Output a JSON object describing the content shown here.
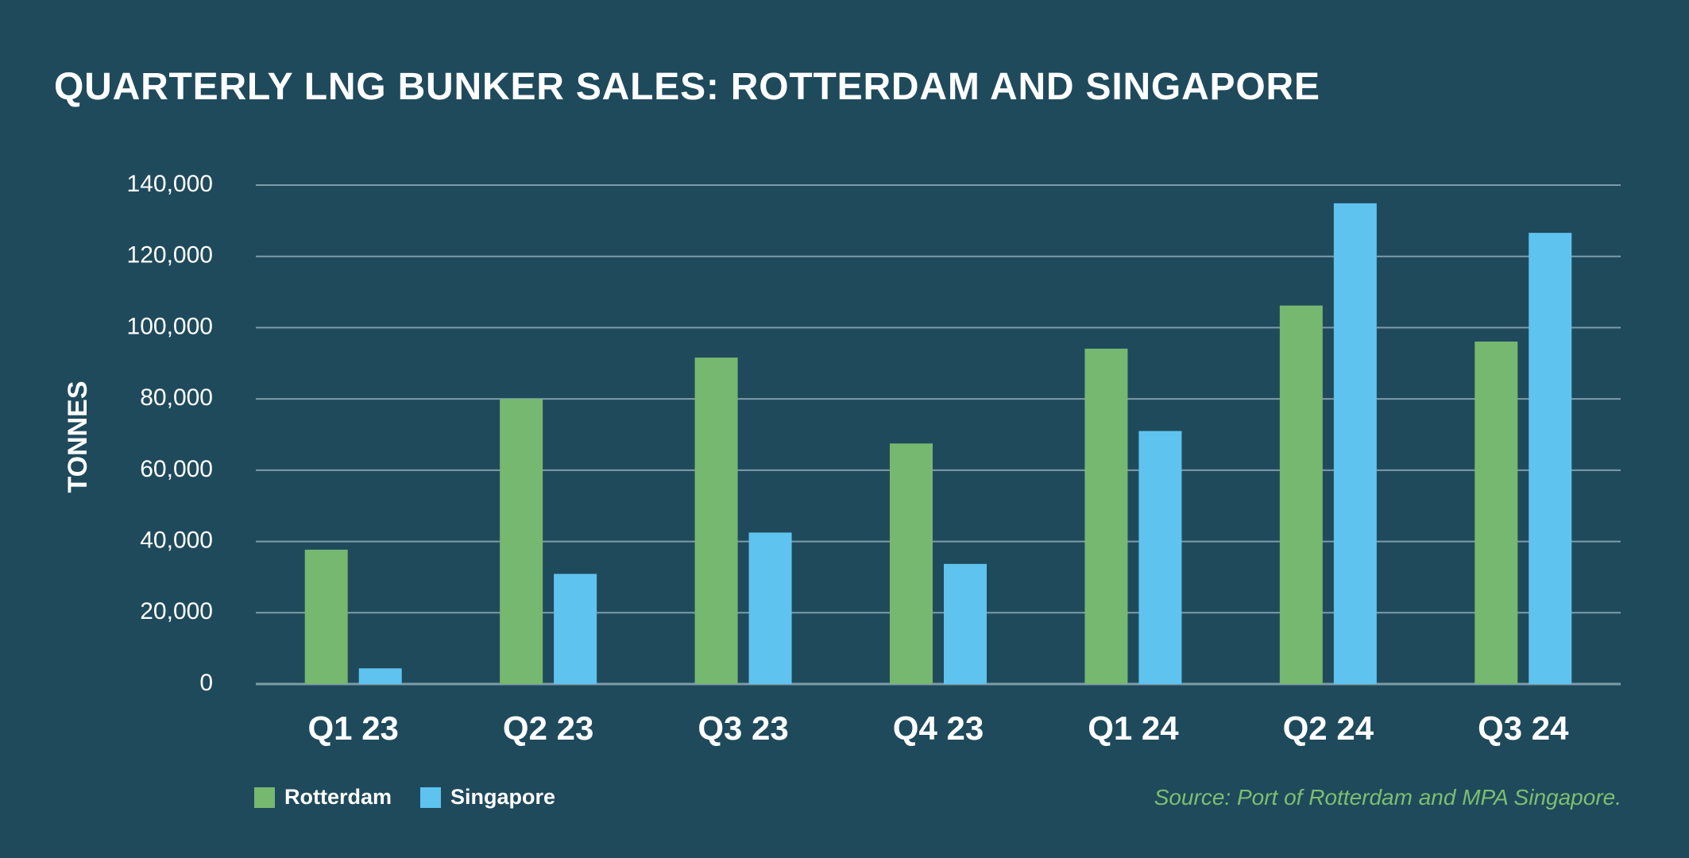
{
  "title": "QUARTERLY LNG BUNKER SALES: ROTTERDAM AND SINGAPORE",
  "source": "Source: Port of Rotterdam and MPA Singapore.",
  "colors": {
    "background": "#1f4a5c",
    "rotterdam": "#77b870",
    "singapore": "#5fc3ef",
    "grid": "#7c9ca8",
    "text": "#ffffff",
    "source": "#7cbf6f"
  },
  "legend": [
    {
      "label": "Rotterdam",
      "color": "#77b870"
    },
    {
      "label": "Singapore",
      "color": "#5fc3ef"
    }
  ],
  "chart_data": {
    "type": "bar",
    "title": "QUARTERLY LNG BUNKER SALES: ROTTERDAM AND SINGAPORE",
    "xlabel": "",
    "ylabel": "TONNES",
    "categories": [
      "Q1 23",
      "Q2 23",
      "Q3 23",
      "Q4 23",
      "Q1 24",
      "Q2 24",
      "Q3 24"
    ],
    "series": [
      {
        "name": "Rotterdam",
        "color": "#77b870",
        "values": [
          37700,
          80000,
          91600,
          67500,
          94100,
          106200,
          96100
        ]
      },
      {
        "name": "Singapore",
        "color": "#5fc3ef",
        "values": [
          4400,
          30900,
          42500,
          33700,
          71000,
          134900,
          126600
        ]
      }
    ],
    "ylim": [
      0,
      140000
    ],
    "yticks": [
      0,
      20000,
      40000,
      60000,
      80000,
      100000,
      120000,
      140000
    ],
    "ytick_labels": [
      "0",
      "20,000",
      "40,000",
      "60,000",
      "80,000",
      "100,000",
      "120,000",
      "140,000"
    ],
    "grid": true,
    "legend_position": "bottom-left"
  }
}
